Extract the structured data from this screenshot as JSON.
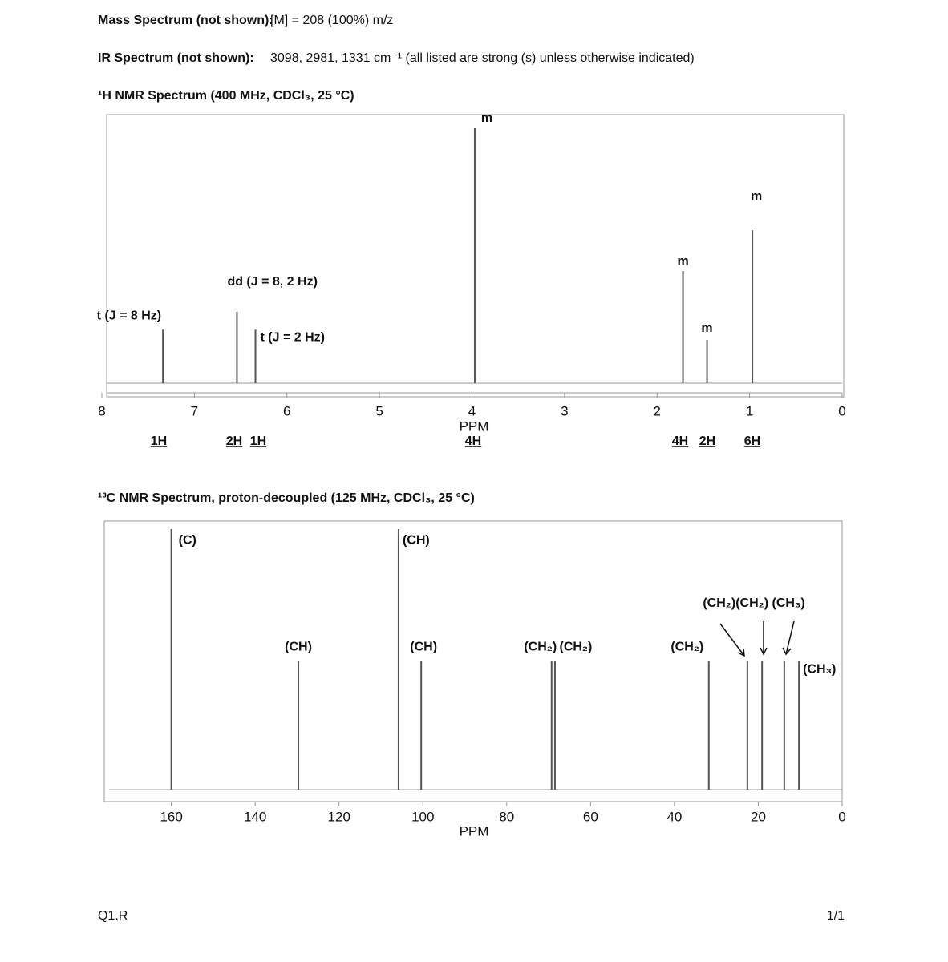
{
  "header": {
    "mass": {
      "label": "Mass Spectrum (not shown):",
      "text": "[M] = 208 (100%) m/z"
    },
    "ir": {
      "label": "IR Spectrum (not shown):",
      "text": "3098, 2981, 1331 cm⁻¹ (all listed are strong (s) unless otherwise indicated)"
    },
    "footer_left": "Q1.R",
    "footer_right": "1/1"
  },
  "chart_data": [
    {
      "type": "stick",
      "title": "¹H NMR Spectrum (400 MHz, CDCl₃, 25 °C)",
      "x_label": "PPM",
      "xlim": [
        8,
        0
      ],
      "xticks": [
        8,
        7,
        6,
        5,
        4,
        3,
        2,
        1,
        0
      ],
      "ylim": [
        0,
        100
      ],
      "color": "#555555",
      "x": [
        7.34,
        6.54,
        6.34,
        3.97,
        1.72,
        1.46,
        0.97
      ],
      "values": [
        21,
        28,
        21,
        100,
        44,
        17,
        60
      ],
      "peak_labels": [
        "t (J = 8 Hz)",
        "dd (J = 8, 2 Hz)",
        "t (J = 2 Hz)",
        "m",
        "m",
        "m",
        "m"
      ],
      "integrations": [
        "1H",
        "2H",
        "1H",
        "4H",
        "4H",
        "2H",
        "6H"
      ]
    },
    {
      "type": "stick",
      "title": "¹³C NMR Spectrum, proton-decoupled (125 MHz, CDCl₃, 25 °C)",
      "x_label": "PPM",
      "xlim": [
        176,
        0
      ],
      "xticks": [
        160,
        140,
        120,
        100,
        80,
        60,
        40,
        20,
        0
      ],
      "ylim": [
        0,
        100
      ],
      "color": "#555555",
      "x": [
        160.0,
        129.7,
        105.8,
        100.4,
        69.3,
        68.5,
        31.8,
        22.6,
        19.1,
        13.8,
        10.3
      ],
      "values": [
        97,
        48,
        97,
        48,
        48,
        48,
        48,
        48,
        48,
        48,
        48
      ],
      "peak_labels": [
        "(C)",
        "(CH)",
        "(CH)",
        "(CH)",
        "(CH₂)",
        "(CH₂)",
        "(CH₂)",
        null,
        null,
        null,
        "(CH₃)"
      ],
      "group_label": "(CH₂)(CH₂) (CH₃)"
    }
  ]
}
